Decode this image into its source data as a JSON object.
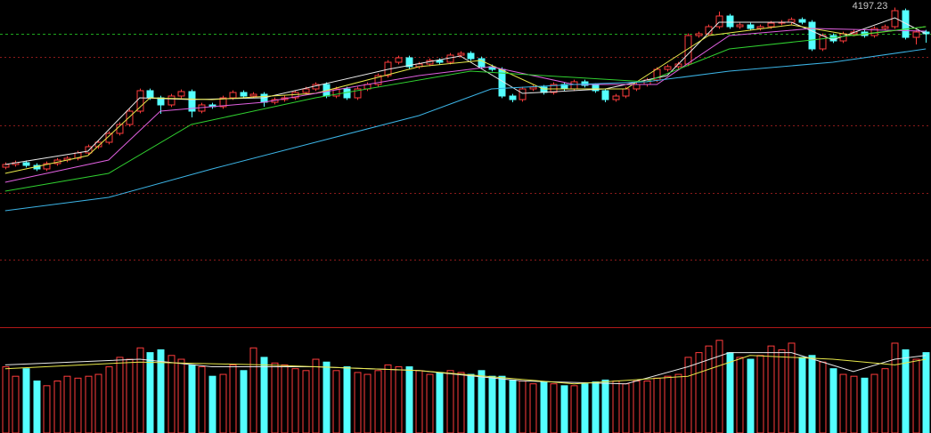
{
  "chart_data": {
    "type": "candlestick",
    "ylim": [
      2415,
      4240
    ],
    "grid_values": [
      3920,
      3535,
      3155,
      2780
    ],
    "grid_color": "#8b1a1a",
    "up_color": "#ff3c3c",
    "down_color": "#54ffff",
    "last_line_color": "#1fa81f",
    "high_label": 4197.23,
    "open": [
      3300,
      3315,
      3325,
      3310,
      3290,
      3320,
      3340,
      3350,
      3380,
      3415,
      3440,
      3490,
      3540,
      3615,
      3730,
      3690,
      3650,
      3700,
      3725,
      3615,
      3650,
      3640,
      3690,
      3720,
      3700,
      3710,
      3665,
      3680,
      3690,
      3720,
      3740,
      3765,
      3700,
      3740,
      3690,
      3740,
      3765,
      3815,
      3890,
      3915,
      3865,
      3880,
      3900,
      3890,
      3930,
      3940,
      3910,
      3865,
      3850,
      3700,
      3680,
      3740,
      3750,
      3720,
      3765,
      3740,
      3780,
      3760,
      3730,
      3680,
      3700,
      3740,
      3765,
      3790,
      3850,
      3865,
      3880,
      4040,
      4050,
      4090,
      4150,
      4090,
      4100,
      4080,
      4090,
      4110,
      4115,
      4130,
      4115,
      3965,
      4040,
      4010,
      4050,
      4060,
      4040,
      4080,
      4090,
      4180,
      4030,
      4060
    ],
    "high": [
      3327,
      3337,
      3337,
      3322,
      3332,
      3352,
      3362,
      3392,
      3427,
      3452,
      3502,
      3552,
      3627,
      3742,
      3742,
      3702,
      3712,
      3737,
      3737,
      3662,
      3662,
      3702,
      3732,
      3732,
      3722,
      3722,
      3692,
      3702,
      3732,
      3752,
      3777,
      3777,
      3752,
      3752,
      3752,
      3777,
      3827,
      3902,
      3927,
      3927,
      3892,
      3912,
      3912,
      3942,
      3952,
      3952,
      3922,
      3877,
      3862,
      3712,
      3752,
      3762,
      3762,
      3777,
      3777,
      3792,
      3792,
      3772,
      3742,
      3712,
      3752,
      3777,
      3802,
      3862,
      3877,
      3892,
      4052,
      4062,
      4102,
      4175,
      4162,
      4112,
      4112,
      4102,
      4122,
      4127,
      4142,
      4142,
      4127,
      4052,
      4052,
      4062,
      4072,
      4072,
      4092,
      4102,
      4197.23,
      4192,
      4072,
      4072
    ],
    "low": [
      3288,
      3303,
      3298,
      3278,
      3278,
      3308,
      3328,
      3338,
      3368,
      3403,
      3428,
      3478,
      3528,
      3603,
      3678,
      3600,
      3638,
      3688,
      3580,
      3603,
      3628,
      3628,
      3678,
      3688,
      3688,
      3640,
      3653,
      3668,
      3678,
      3708,
      3728,
      3688,
      3688,
      3678,
      3678,
      3728,
      3753,
      3803,
      3878,
      3853,
      3853,
      3868,
      3878,
      3878,
      3918,
      3898,
      3853,
      3838,
      3688,
      3665,
      3668,
      3728,
      3708,
      3708,
      3728,
      3728,
      3748,
      3718,
      3665,
      3668,
      3688,
      3728,
      3753,
      3778,
      3838,
      3853,
      3868,
      4028,
      4038,
      4078,
      4078,
      4078,
      4068,
      4068,
      4078,
      4098,
      4103,
      4103,
      3953,
      3953,
      3998,
      3998,
      4038,
      4028,
      4028,
      4068,
      4078,
      4018,
      3990,
      4000
    ],
    "close": [
      3315,
      3325,
      3310,
      3290,
      3320,
      3340,
      3350,
      3380,
      3415,
      3440,
      3490,
      3540,
      3615,
      3730,
      3690,
      3650,
      3700,
      3725,
      3615,
      3650,
      3640,
      3690,
      3720,
      3700,
      3710,
      3665,
      3680,
      3690,
      3720,
      3740,
      3765,
      3700,
      3740,
      3690,
      3740,
      3765,
      3815,
      3890,
      3915,
      3865,
      3880,
      3900,
      3890,
      3930,
      3940,
      3910,
      3865,
      3850,
      3700,
      3680,
      3740,
      3750,
      3720,
      3765,
      3740,
      3780,
      3760,
      3730,
      3680,
      3700,
      3740,
      3765,
      3790,
      3850,
      3865,
      3880,
      4040,
      4050,
      4090,
      4150,
      4090,
      4100,
      4080,
      4090,
      4110,
      4115,
      4130,
      4115,
      3965,
      4040,
      4010,
      4050,
      4060,
      4040,
      4080,
      4090,
      4180,
      4030,
      4060,
      4050
    ],
    "ma_lines": [
      {
        "color": "#e8e8e8",
        "x": [
          0,
          8,
          13,
          18,
          25,
          37,
          44,
          50,
          58,
          64,
          69,
          76,
          80,
          86,
          89
        ],
        "values": [
          3315,
          3390,
          3690,
          3680,
          3690,
          3850,
          3925,
          3715,
          3740,
          3815,
          4115,
          4115,
          4015,
          4140,
          4050
        ]
      },
      {
        "color": "#e8e84a",
        "x": [
          0,
          8,
          14,
          20,
          30,
          40,
          46,
          52,
          60,
          68,
          76,
          82,
          89
        ],
        "values": [
          3265,
          3365,
          3690,
          3680,
          3715,
          3865,
          3900,
          3740,
          3740,
          4040,
          4100,
          4040,
          4090
        ]
      },
      {
        "color": "#e060e0",
        "x": [
          0,
          10,
          15,
          25,
          40,
          47,
          55,
          63,
          70,
          78,
          89
        ],
        "values": [
          3215,
          3340,
          3615,
          3665,
          3815,
          3865,
          3765,
          3765,
          4040,
          4080,
          4065
        ]
      },
      {
        "color": "#30d030",
        "x": [
          0,
          10,
          18,
          30,
          45,
          52,
          62,
          70,
          78,
          89
        ],
        "values": [
          3165,
          3265,
          3540,
          3690,
          3840,
          3815,
          3780,
          3965,
          4015,
          4090
        ]
      },
      {
        "color": "#3cb4e6",
        "x": [
          0,
          10,
          20,
          30,
          40,
          47,
          55,
          62,
          70,
          80,
          89
        ],
        "values": [
          3055,
          3130,
          3290,
          3440,
          3590,
          3740,
          3765,
          3780,
          3840,
          3890,
          3965
        ]
      }
    ],
    "volume": {
      "ylim": [
        0,
        110
      ],
      "values": [
        70,
        60,
        68,
        55,
        50,
        55,
        60,
        58,
        60,
        62,
        70,
        80,
        78,
        90,
        85,
        88,
        82,
        78,
        72,
        70,
        60,
        62,
        72,
        66,
        90,
        80,
        74,
        72,
        68,
        66,
        78,
        75,
        66,
        70,
        64,
        62,
        66,
        72,
        70,
        70,
        66,
        62,
        64,
        66,
        64,
        62,
        66,
        60,
        60,
        56,
        55,
        52,
        54,
        52,
        50,
        50,
        52,
        54,
        56,
        55,
        52,
        55,
        55,
        58,
        60,
        62,
        80,
        85,
        92,
        98,
        85,
        80,
        78,
        82,
        92,
        88,
        95,
        80,
        82,
        75,
        68,
        62,
        60,
        58,
        62,
        68,
        95,
        88,
        78,
        85
      ],
      "ma_lines": [
        {
          "color": "#e8e8e8",
          "x": [
            0,
            13,
            20,
            30,
            40,
            50,
            60,
            66,
            70,
            76,
            82,
            86,
            89
          ],
          "values": [
            72,
            78,
            70,
            70,
            66,
            55,
            52,
            70,
            85,
            85,
            65,
            78,
            82
          ]
        },
        {
          "color": "#e8e84a",
          "x": [
            0,
            13,
            25,
            40,
            55,
            66,
            72,
            80,
            86,
            89
          ],
          "values": [
            68,
            75,
            72,
            66,
            52,
            60,
            82,
            78,
            72,
            78
          ]
        }
      ]
    }
  }
}
